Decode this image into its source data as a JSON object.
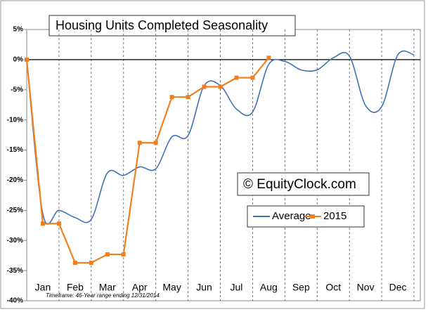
{
  "chart_data": {
    "type": "line",
    "title": "Housing Units Completed Seasonality",
    "annotation": "© EquityClock.com",
    "note": "Timeframe: 46-Year range ending 12/31/2014",
    "categories": [
      null,
      "Jan",
      null,
      "Feb",
      null,
      "Mar",
      null,
      "Apr",
      null,
      "May",
      null,
      "Jun",
      null,
      "Jul",
      null,
      "Aug",
      null,
      "Sep",
      null,
      "Oct",
      null,
      "Nov",
      null,
      "Dec",
      null
    ],
    "series": [
      {
        "name": "Average",
        "color": "#3f72b8",
        "values": [
          0,
          -25.6,
          -25,
          -26.2,
          -26.5,
          -18.8,
          -19.2,
          -17.8,
          -18.1,
          -12.8,
          -12.6,
          -4.3,
          -4.3,
          -8.2,
          -8.7,
          -0.8,
          -0.3,
          -1.7,
          -1.7,
          0.3,
          0.6,
          -7.6,
          -7.8,
          0.8,
          0.8
        ]
      },
      {
        "name": "2015",
        "color": "#f07f1e",
        "values": [
          0,
          -27.2,
          -27.2,
          -33.7,
          -33.7,
          -32.3,
          -32.3,
          -13.8,
          -13.8,
          -6.2,
          -6.2,
          -4.5,
          -4.5,
          -3,
          -3,
          0.3,
          null,
          null,
          null,
          null,
          null,
          null,
          null,
          null,
          null
        ]
      }
    ],
    "ylim": [
      -40,
      5
    ],
    "yticks": [
      {
        "value": 5,
        "label": "5%"
      },
      {
        "value": 0,
        "label": "0%"
      },
      {
        "value": -5,
        "label": "-5%"
      },
      {
        "value": -10,
        "label": "-10%"
      },
      {
        "value": -15,
        "label": "-15%"
      },
      {
        "value": -20,
        "label": "-20%"
      },
      {
        "value": -25,
        "label": "-25%"
      },
      {
        "value": -30,
        "label": "-30%"
      },
      {
        "value": -35,
        "label": "-35%"
      },
      {
        "value": -40,
        "label": "-40%"
      }
    ]
  }
}
